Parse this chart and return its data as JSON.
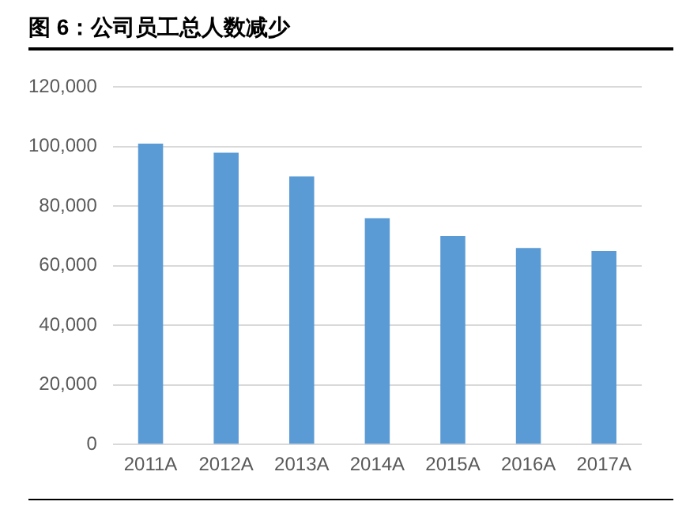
{
  "chart_data": {
    "type": "bar",
    "title": "图 6：公司员工总人数减少",
    "categories": [
      "2011A",
      "2012A",
      "2013A",
      "2014A",
      "2015A",
      "2016A",
      "2017A"
    ],
    "values": [
      101000,
      98000,
      90000,
      76000,
      70000,
      66000,
      65000
    ],
    "color": "#5b9bd5",
    "ylim": [
      0,
      120000
    ],
    "yticks": [
      0,
      {
        "value": 20000,
        "label": "20,000"
      },
      {
        "value": 40000,
        "label": "40,000"
      },
      {
        "value": 60000,
        "label": "60,000"
      },
      {
        "value": 80000,
        "label": "80,000"
      },
      {
        "value": 100000,
        "label": "100,000"
      },
      {
        "value": 120000,
        "label": "120,000"
      }
    ],
    "grid": "y",
    "legend": false
  }
}
